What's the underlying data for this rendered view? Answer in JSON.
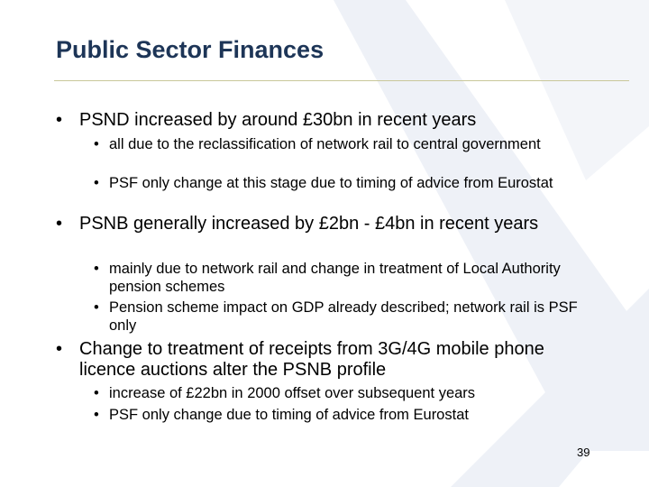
{
  "header": {
    "title": "Public Sector Finances"
  },
  "bullets": [
    {
      "text": "PSND increased by around £30bn in recent years",
      "sub": [
        "all due to the reclassification of network rail to central government",
        "PSF only change at this stage due to timing of advice from Eurostat"
      ]
    },
    {
      "text": "PSNB generally increased by £2bn - £4bn in recent years",
      "sub": [
        "mainly due to network rail and change in treatment of Local Authority pension schemes",
        "Pension scheme impact on GDP already described; network rail is PSF only"
      ]
    },
    {
      "text": "Change to treatment of receipts from 3G/4G mobile phone licence auctions alter the PSNB profile",
      "sub": [
        "increase of £22bn in 2000 offset over subsequent years",
        "PSF only change due to timing of advice from Eurostat"
      ]
    }
  ],
  "footer": {
    "page_number": "39"
  }
}
